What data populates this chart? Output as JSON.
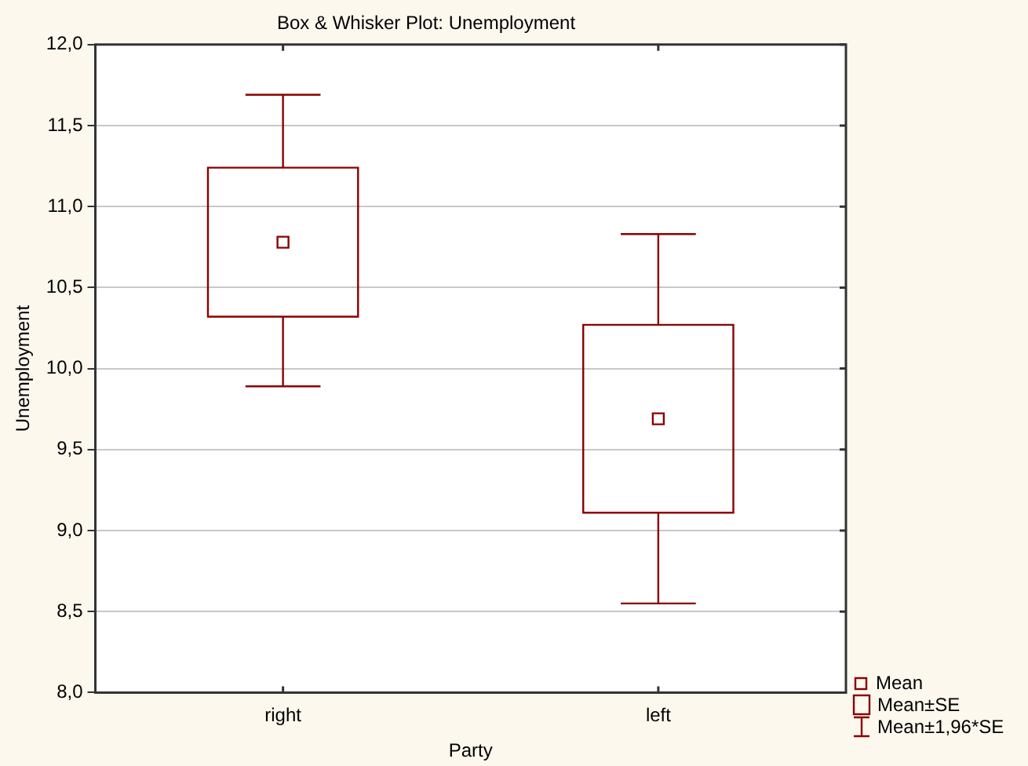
{
  "chart_data": {
    "type": "box",
    "title": "Box & Whisker Plot: Unemployment",
    "xlabel": "Party",
    "ylabel": "Unemployment",
    "categories": [
      "right",
      "left"
    ],
    "boxes": [
      {
        "low": 9.89,
        "q1": 10.32,
        "median": 10.78,
        "q3": 11.24,
        "high": 11.69
      },
      {
        "low": 8.55,
        "q1": 9.11,
        "median": 9.69,
        "q3": 10.27,
        "high": 10.83
      }
    ],
    "color": "#8b0000",
    "ylim": [
      8,
      12
    ],
    "yticks": [
      {
        "value": 8,
        "label": "8,0"
      },
      {
        "value": 8.5,
        "label": "8,5"
      },
      {
        "value": 9,
        "label": "9,0"
      },
      {
        "value": 9.5,
        "label": "9,5"
      },
      {
        "value": 10,
        "label": "10,0"
      },
      {
        "value": 10.5,
        "label": "10,5"
      },
      {
        "value": 11,
        "label": "11,0"
      },
      {
        "value": 11.5,
        "label": "11,5"
      },
      {
        "value": 12,
        "label": "12,0"
      }
    ],
    "grid": "y",
    "annotations": [
      "Mean",
      "Mean±SE",
      "Mean±1,96*SE"
    ]
  }
}
